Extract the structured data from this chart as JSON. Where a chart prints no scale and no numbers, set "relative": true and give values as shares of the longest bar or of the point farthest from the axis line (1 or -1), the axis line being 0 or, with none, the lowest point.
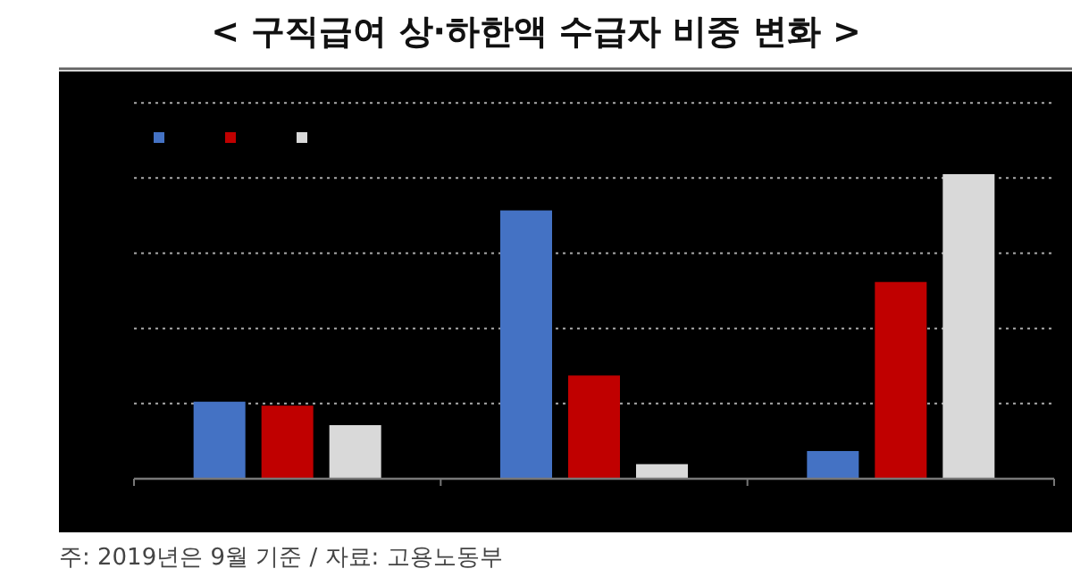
{
  "chart_data": {
    "type": "bar",
    "title": "< 구직급여 상·하한액 수급자 비중 변화 >",
    "relative": true,
    "grid": "y",
    "categories": [
      null,
      null,
      null
    ],
    "series": [
      {
        "color": "#4472c4",
        "values": [
          0.253,
          0.881,
          0.091
        ]
      },
      {
        "color": "#c00000",
        "values": [
          0.24,
          0.339,
          0.646
        ]
      },
      {
        "color": "#d9d9d9",
        "values": [
          0.176,
          0.048,
          1
        ]
      }
    ],
    "annotations": [
      "주: 2019년은 9월 기준 / 자료: 고용노동부"
    ]
  }
}
